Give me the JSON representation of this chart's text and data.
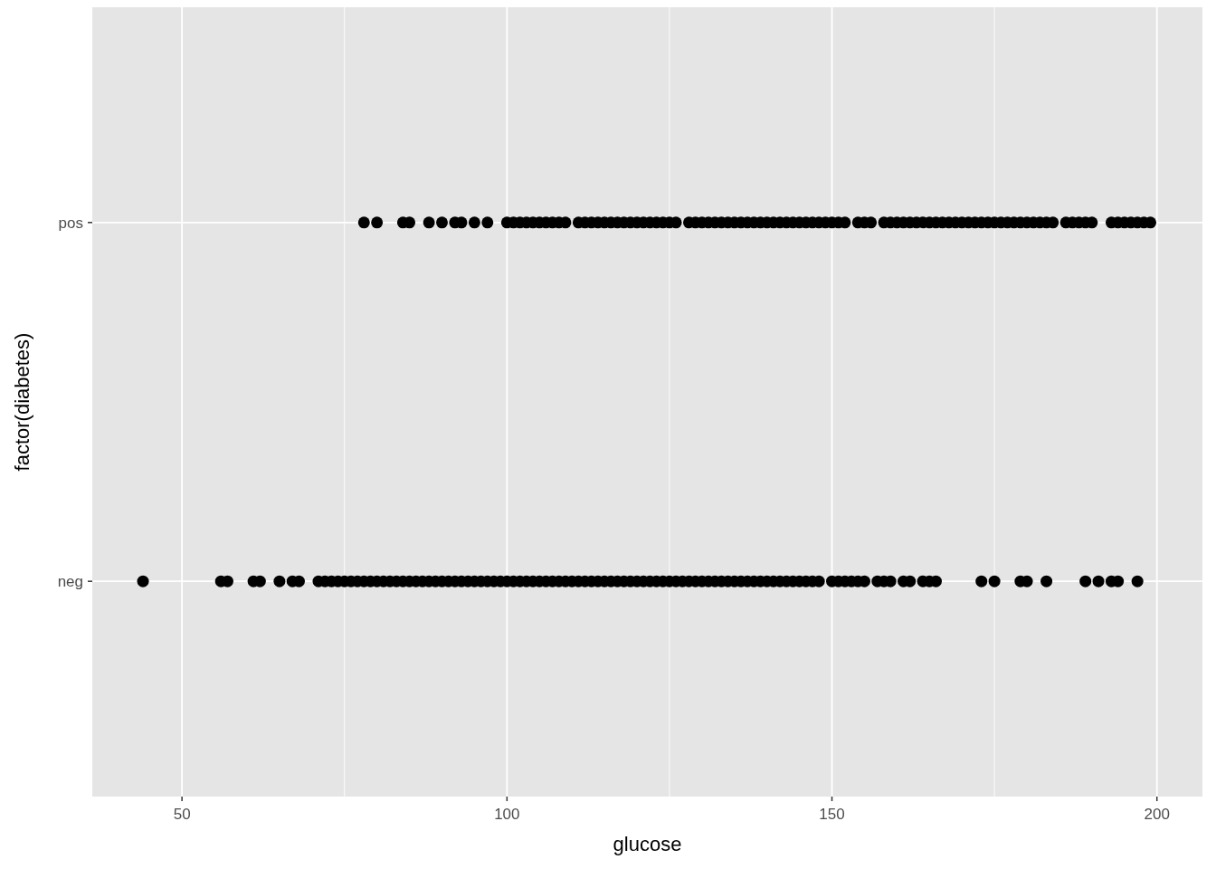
{
  "chart_data": {
    "type": "scatter",
    "orientation": "horizontal",
    "xlabel": "glucose",
    "ylabel": "factor(diabetes)",
    "categories": [
      "pos",
      "neg"
    ],
    "xlim": [
      36.2,
      207
    ],
    "xticks": [
      50,
      100,
      150,
      200
    ],
    "grid": true,
    "marker": "circle",
    "series": [
      {
        "color": "#000000",
        "values": [
          78,
          80,
          84,
          85,
          88,
          90,
          92,
          93,
          95,
          97,
          100,
          101,
          102,
          103,
          104,
          105,
          106,
          107,
          108,
          109,
          111,
          112,
          113,
          114,
          115,
          116,
          117,
          118,
          119,
          120,
          121,
          122,
          123,
          124,
          125,
          126,
          128,
          129,
          130,
          131,
          132,
          133,
          134,
          135,
          136,
          137,
          138,
          139,
          140,
          141,
          142,
          143,
          144,
          145,
          146,
          147,
          148,
          149,
          150,
          151,
          152,
          154,
          155,
          156,
          158,
          159,
          160,
          161,
          162,
          163,
          164,
          165,
          166,
          167,
          168,
          169,
          170,
          171,
          172,
          173,
          174,
          175,
          176,
          177,
          178,
          179,
          180,
          181,
          182,
          183,
          184,
          186,
          187,
          188,
          189,
          190,
          193,
          194,
          195,
          196,
          197,
          198,
          199
        ],
        "x": [
          "pos",
          "pos",
          "pos",
          "pos",
          "pos",
          "pos",
          "pos",
          "pos",
          "pos",
          "pos",
          "pos",
          "pos",
          "pos",
          "pos",
          "pos",
          "pos",
          "pos",
          "pos",
          "pos",
          "pos",
          "pos",
          "pos",
          "pos",
          "pos",
          "pos",
          "pos",
          "pos",
          "pos",
          "pos",
          "pos",
          "pos",
          "pos",
          "pos",
          "pos",
          "pos",
          "pos",
          "pos",
          "pos",
          "pos",
          "pos",
          "pos",
          "pos",
          "pos",
          "pos",
          "pos",
          "pos",
          "pos",
          "pos",
          "pos",
          "pos",
          "pos",
          "pos",
          "pos",
          "pos",
          "pos",
          "pos",
          "pos",
          "pos",
          "pos",
          "pos",
          "pos",
          "pos",
          "pos",
          "pos",
          "pos",
          "pos",
          "pos",
          "pos",
          "pos",
          "pos",
          "pos",
          "pos",
          "pos",
          "pos",
          "pos",
          "pos",
          "pos",
          "pos",
          "pos",
          "pos",
          "pos",
          "pos",
          "pos",
          "pos",
          "pos",
          "pos",
          "pos",
          "pos",
          "pos",
          "pos",
          "pos",
          "pos",
          "pos",
          "pos",
          "pos",
          "pos",
          "pos",
          "pos",
          "pos",
          "pos",
          "pos",
          "pos",
          "pos"
        ]
      },
      {
        "color": "#000000",
        "values": [
          44,
          56,
          57,
          61,
          62,
          65,
          67,
          68,
          71,
          72,
          73,
          74,
          75,
          76,
          77,
          78,
          79,
          80,
          81,
          82,
          83,
          84,
          85,
          86,
          87,
          88,
          89,
          90,
          91,
          92,
          93,
          94,
          95,
          96,
          97,
          98,
          99,
          100,
          101,
          102,
          103,
          104,
          105,
          106,
          107,
          108,
          109,
          110,
          111,
          112,
          113,
          114,
          115,
          116,
          117,
          118,
          119,
          120,
          121,
          122,
          123,
          124,
          125,
          126,
          127,
          128,
          129,
          130,
          131,
          132,
          133,
          134,
          135,
          136,
          137,
          138,
          139,
          140,
          141,
          142,
          143,
          144,
          145,
          146,
          147,
          148,
          150,
          151,
          152,
          153,
          154,
          155,
          157,
          158,
          159,
          161,
          162,
          164,
          165,
          166,
          173,
          175,
          179,
          180,
          183,
          189,
          191,
          193,
          194,
          197
        ],
        "x": [
          "neg",
          "neg",
          "neg",
          "neg",
          "neg",
          "neg",
          "neg",
          "neg",
          "neg",
          "neg",
          "neg",
          "neg",
          "neg",
          "neg",
          "neg",
          "neg",
          "neg",
          "neg",
          "neg",
          "neg",
          "neg",
          "neg",
          "neg",
          "neg",
          "neg",
          "neg",
          "neg",
          "neg",
          "neg",
          "neg",
          "neg",
          "neg",
          "neg",
          "neg",
          "neg",
          "neg",
          "neg",
          "neg",
          "neg",
          "neg",
          "neg",
          "neg",
          "neg",
          "neg",
          "neg",
          "neg",
          "neg",
          "neg",
          "neg",
          "neg",
          "neg",
          "neg",
          "neg",
          "neg",
          "neg",
          "neg",
          "neg",
          "neg",
          "neg",
          "neg",
          "neg",
          "neg",
          "neg",
          "neg",
          "neg",
          "neg",
          "neg",
          "neg",
          "neg",
          "neg",
          "neg",
          "neg",
          "neg",
          "neg",
          "neg",
          "neg",
          "neg",
          "neg",
          "neg",
          "neg",
          "neg",
          "neg",
          "neg",
          "neg",
          "neg",
          "neg",
          "neg",
          "neg",
          "neg",
          "neg",
          "neg",
          "neg",
          "neg",
          "neg",
          "neg",
          "neg",
          "neg",
          "neg",
          "neg",
          "neg",
          "neg",
          "neg",
          "neg",
          "neg",
          "neg",
          "neg",
          "neg",
          "neg",
          "neg",
          "neg"
        ]
      }
    ]
  }
}
